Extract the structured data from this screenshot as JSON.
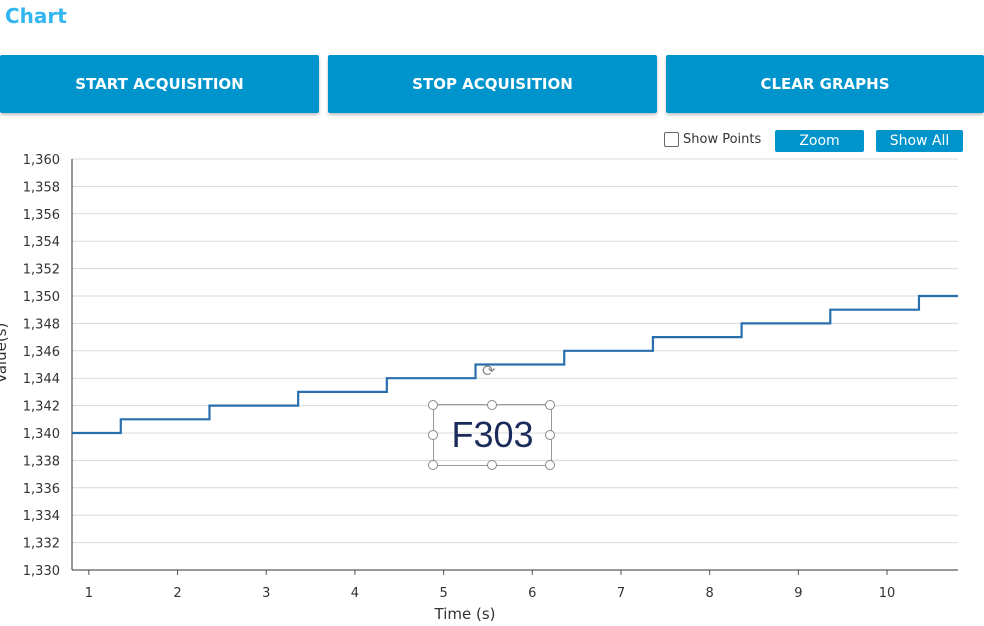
{
  "header": {
    "title": "Chart"
  },
  "toolbar": {
    "start": "START ACQUISITION",
    "stop": "STOP ACQUISITION",
    "clear": "CLEAR GRAPHS"
  },
  "controls": {
    "show_points": "Show Points",
    "show_points_checked": false,
    "zoom": "Zoom",
    "show_all": "Show All"
  },
  "annotation": {
    "text": "F303"
  },
  "colors": {
    "accent": "#0094cc",
    "line": "#2a6fad",
    "title": "#33b5f0"
  },
  "chart_data": {
    "type": "line",
    "step": true,
    "xlabel": "Time (s)",
    "ylabel": "Value(s)",
    "xlim": [
      0.81,
      10.8
    ],
    "ylim": [
      1330,
      1360
    ],
    "grid": true,
    "xticks": [
      1,
      2,
      3,
      4,
      5,
      6,
      7,
      8,
      9,
      10
    ],
    "yticks": [
      "1,330",
      "1,332",
      "1,334",
      "1,336",
      "1,338",
      "1,340",
      "1,342",
      "1,344",
      "1,346",
      "1,348",
      "1,350",
      "1,352",
      "1,354",
      "1,356",
      "1,358",
      "1,360"
    ],
    "x": [
      0.81,
      1.36,
      2.36,
      3.36,
      4.36,
      5.36,
      6.36,
      7.36,
      8.36,
      9.36,
      10.36,
      10.8
    ],
    "y": [
      1340,
      1341,
      1342,
      1343,
      1344,
      1345,
      1346,
      1347,
      1348,
      1349,
      1350,
      1350
    ]
  }
}
